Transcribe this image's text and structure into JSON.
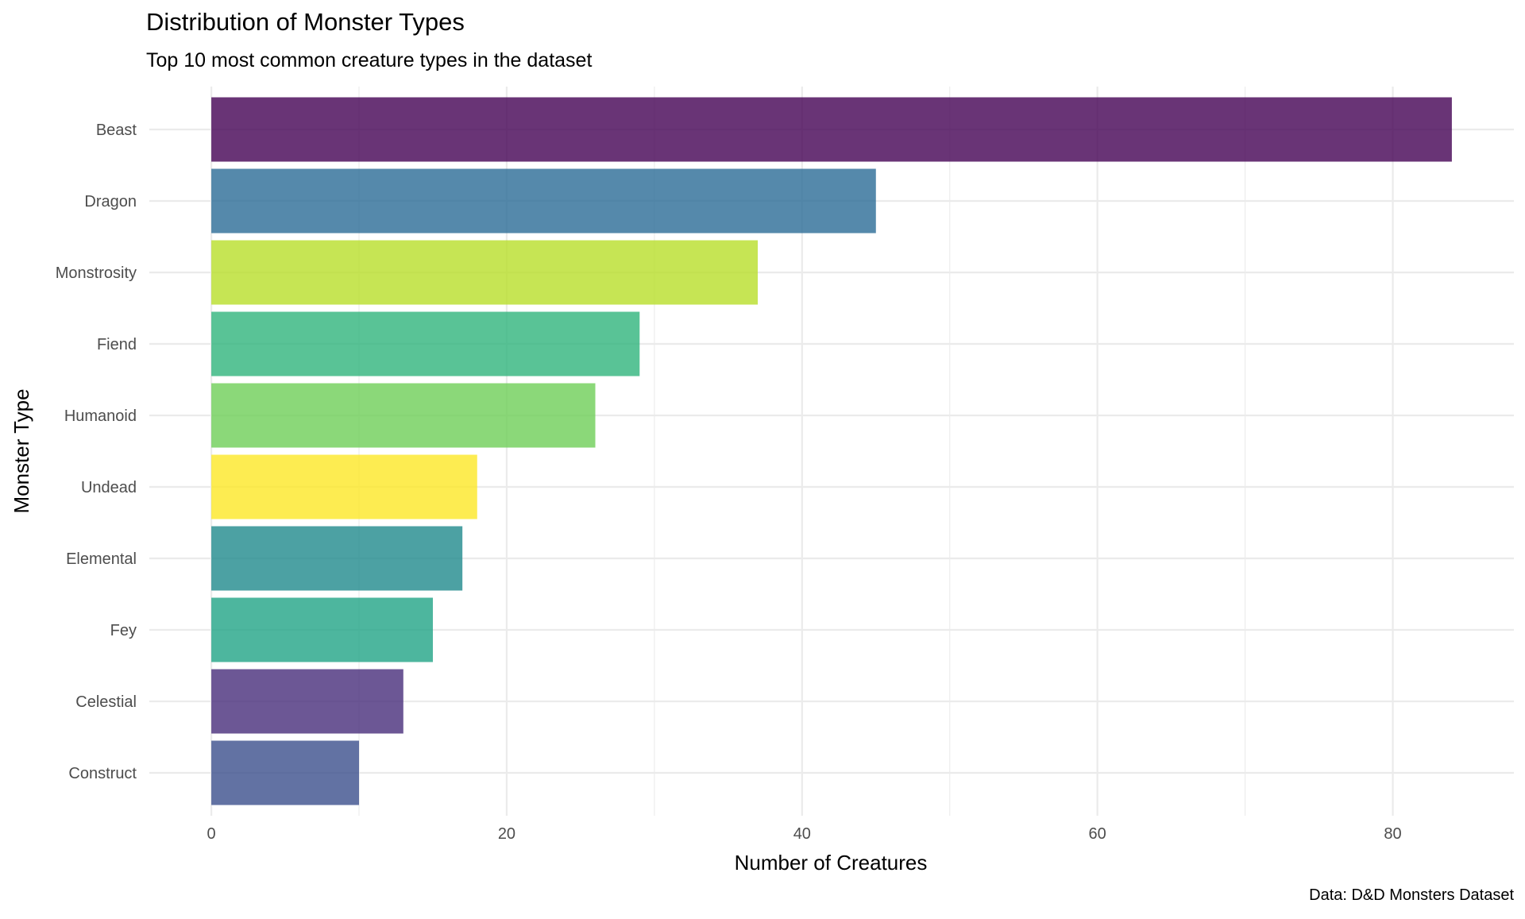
{
  "chart_data": {
    "type": "bar",
    "orientation": "horizontal",
    "title": "Distribution of Monster Types",
    "subtitle": "Top 10 most common creature types in the dataset",
    "xlabel": "Number of Creatures",
    "ylabel": "Monster Type",
    "caption": "Data: D&D Monsters Dataset",
    "categories": [
      "Beast",
      "Dragon",
      "Monstrosity",
      "Fiend",
      "Humanoid",
      "Undead",
      "Elemental",
      "Fey",
      "Celestial",
      "Construct"
    ],
    "values": [
      84,
      45,
      37,
      29,
      26,
      18,
      17,
      15,
      13,
      10
    ],
    "colors": [
      "#440154",
      "#2a6b96",
      "#b8de29",
      "#2fb47c",
      "#6ece58",
      "#fde725",
      "#1f8a8c",
      "#20a486",
      "#472d7b",
      "#3b4f8c"
    ],
    "bar_opacity": 0.8,
    "xlim": [
      -4.2,
      88.2
    ],
    "x_ticks": [
      0,
      20,
      40,
      60,
      80
    ],
    "x_minor_ticks": [
      10,
      30,
      50,
      70
    ],
    "grid": true,
    "legend": "none"
  }
}
